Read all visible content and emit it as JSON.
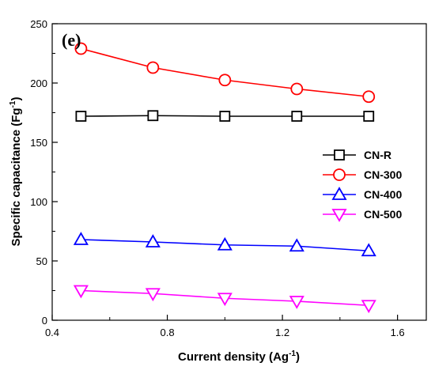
{
  "chart_data": {
    "type": "line",
    "panel_label": "(e)",
    "xlabel": "Current density",
    "xlabel_unit_base": "Ag",
    "xlabel_unit_sup": "-1",
    "ylabel": "Specific capacitance",
    "ylabel_unit_base": "Fg",
    "ylabel_unit_sup": "-1",
    "xlim": [
      0.4,
      1.7
    ],
    "ylim": [
      0,
      250
    ],
    "x_ticks": [
      0.4,
      0.8,
      1.2,
      1.6
    ],
    "x_tick_labels": [
      "0.4",
      "0.8",
      "1.2",
      "1.6"
    ],
    "y_ticks": [
      0,
      50,
      100,
      150,
      200,
      250
    ],
    "y_tick_labels": [
      "0",
      "50",
      "100",
      "150",
      "200",
      "250"
    ],
    "grid": false,
    "legend_position": "right",
    "x": [
      0.5,
      0.75,
      1.0,
      1.25,
      1.5
    ],
    "series": [
      {
        "name": "CN-R",
        "marker": "square",
        "color": "#000000",
        "values": [
          172,
          172.5,
          172,
          172,
          172
        ]
      },
      {
        "name": "CN-300",
        "marker": "circle",
        "color": "#ff0000",
        "values": [
          229,
          213,
          202.5,
          195,
          188.5
        ]
      },
      {
        "name": "CN-400",
        "marker": "triangle-up",
        "color": "#0000ff",
        "values": [
          68,
          66,
          63.5,
          62.5,
          58.5
        ]
      },
      {
        "name": "CN-500",
        "marker": "triangle-down",
        "color": "#ff00ff",
        "values": [
          25,
          22.5,
          18.5,
          16,
          12.5
        ]
      }
    ]
  }
}
